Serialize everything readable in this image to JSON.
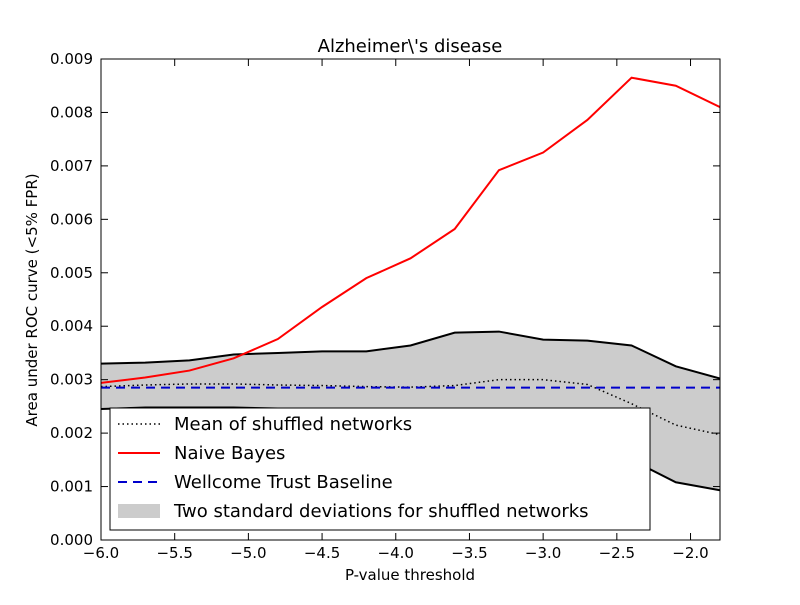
{
  "chart_data": {
    "type": "line",
    "title": "Alzheimer\\'s disease",
    "xlabel": "P-value threshold",
    "ylabel": "Area under ROC curve (<5% FPR)",
    "xlim": [
      -6.0,
      -1.8
    ],
    "ylim": [
      0.0,
      0.009
    ],
    "x_ticks": [
      -6.0,
      -5.5,
      -5.0,
      -4.5,
      -4.0,
      -3.5,
      -3.0,
      -2.5,
      -2.0
    ],
    "x_tick_labels": [
      "−6.0",
      "−5.5",
      "−5.0",
      "−4.5",
      "−4.0",
      "−3.5",
      "−3.0",
      "−2.5",
      "−2.0"
    ],
    "y_ticks": [
      0.0,
      0.001,
      0.002,
      0.003,
      0.004,
      0.005,
      0.006,
      0.007,
      0.008,
      0.009
    ],
    "y_tick_labels": [
      "0.000",
      "0.001",
      "0.002",
      "0.003",
      "0.004",
      "0.005",
      "0.006",
      "0.007",
      "0.008",
      "0.009"
    ],
    "grid": false,
    "legend_position": "lower-left",
    "x": [
      -6.0,
      -5.7,
      -5.4,
      -5.1,
      -4.8,
      -4.5,
      -4.2,
      -3.9,
      -3.6,
      -3.3,
      -3.0,
      -2.7,
      -2.4,
      -2.1,
      -1.8
    ],
    "band": {
      "name": "Two standard deviations for shuffled networks",
      "color": "#cccccc",
      "upper": [
        0.0033,
        0.00332,
        0.00336,
        0.00347,
        0.0035,
        0.00353,
        0.00353,
        0.00364,
        0.00388,
        0.0039,
        0.00375,
        0.00373,
        0.00364,
        0.00325,
        0.00302
      ],
      "lower": [
        0.00245,
        0.00248,
        0.00248,
        0.00248,
        0.00246,
        0.00245,
        0.00242,
        0.0024,
        0.0024,
        0.0024,
        0.0022,
        0.0019,
        0.0015,
        0.00108,
        0.00093
      ]
    },
    "series": [
      {
        "name": "Mean of shuffled networks",
        "style": "dotted",
        "color": "#000000",
        "values": [
          0.00287,
          0.0029,
          0.00292,
          0.00292,
          0.0029,
          0.00289,
          0.00287,
          0.00286,
          0.00289,
          0.003,
          0.003,
          0.00291,
          0.00255,
          0.00215,
          0.00197
        ]
      },
      {
        "name": "Naive Bayes",
        "style": "solid",
        "color": "#ff0000",
        "values": [
          0.00294,
          0.00304,
          0.00317,
          0.0034,
          0.00376,
          0.00436,
          0.0049,
          0.00527,
          0.00582,
          0.00692,
          0.00725,
          0.00786,
          0.00865,
          0.0085,
          0.0081
        ]
      },
      {
        "name": "Wellcome Trust Baseline",
        "style": "dashed",
        "color": "#0000cc",
        "values": [
          0.00285,
          0.00285,
          0.00285,
          0.00285,
          0.00285,
          0.00285,
          0.00285,
          0.00285,
          0.00285,
          0.00285,
          0.00285,
          0.00285,
          0.00285,
          0.00285,
          0.00285
        ]
      }
    ]
  }
}
